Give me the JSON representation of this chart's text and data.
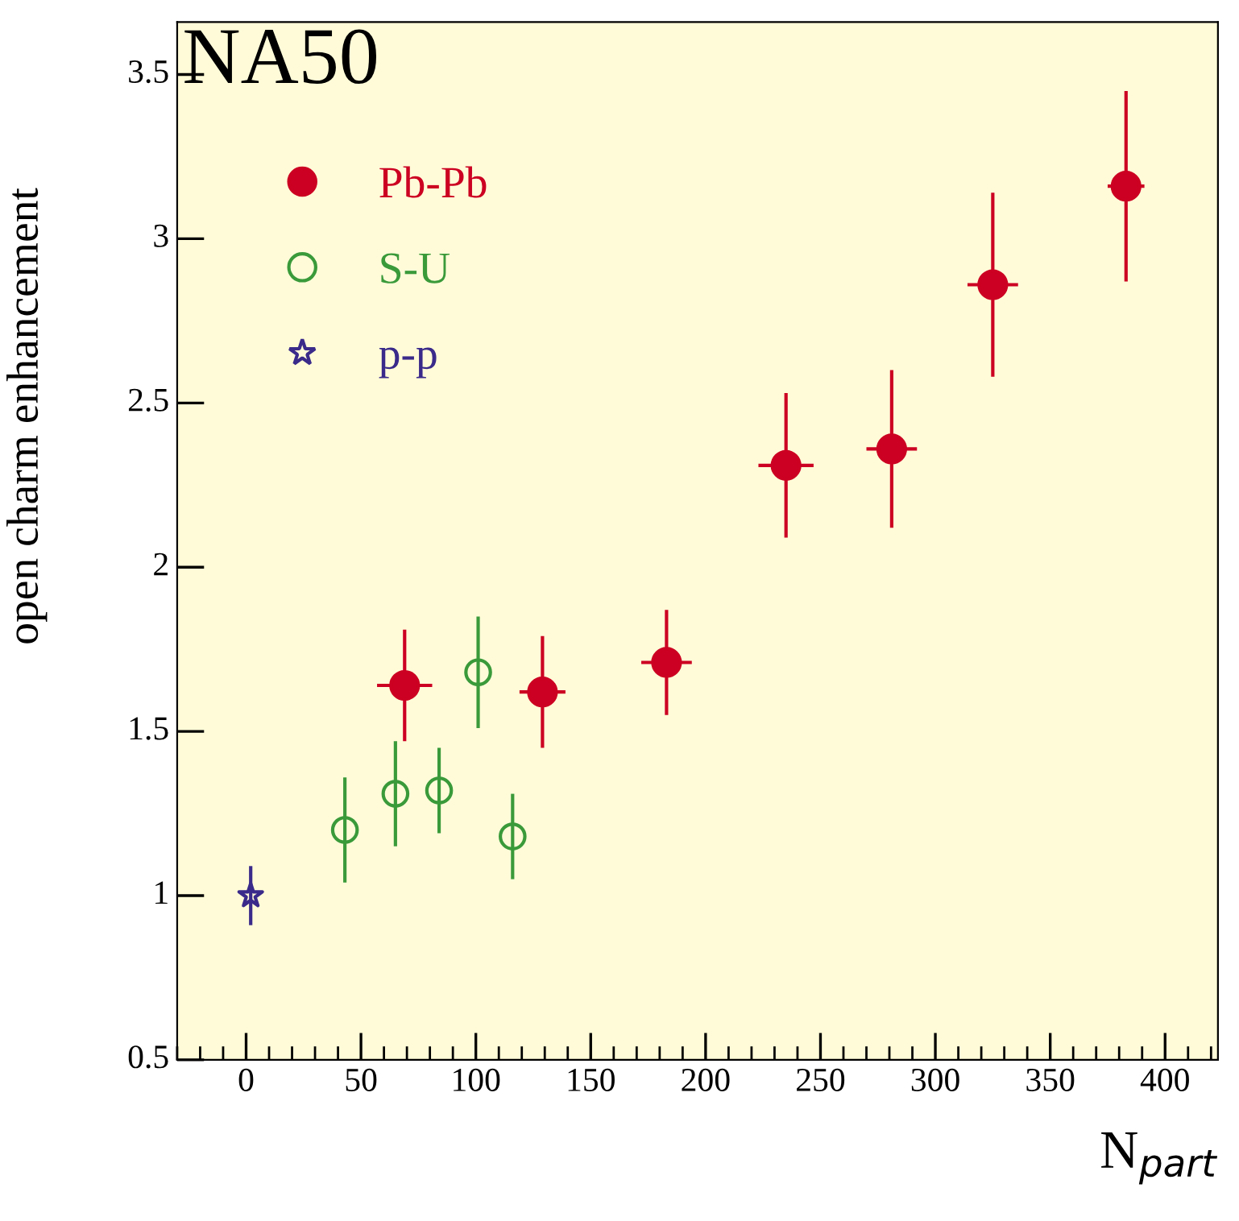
{
  "chart_data": {
    "type": "scatter",
    "xlabel": "N$_{part}$",
    "ylabel": "open charm enhancement",
    "annotations": [
      "NA50"
    ],
    "xlim": [
      -30,
      423
    ],
    "xticks": [
      0,
      50,
      100,
      150,
      200,
      250,
      300,
      350,
      400
    ],
    "ylim": [
      0.5,
      3.66
    ],
    "yticks": [
      0.5,
      1,
      1.5,
      2,
      2.5,
      3,
      3.5
    ],
    "grid": false,
    "legend": "top left",
    "series": [
      {
        "name": "Pb-Pb",
        "color": "#cc0022",
        "marker": "circle",
        "x": [
          69,
          129,
          183,
          235,
          281,
          325,
          383
        ],
        "values": [
          1.64,
          1.62,
          1.71,
          2.31,
          2.36,
          2.86,
          3.16
        ],
        "errors": [
          0.17,
          0.17,
          0.16,
          0.22,
          0.24,
          0.28,
          0.29
        ],
        "xerrors": [
          12,
          10,
          11,
          12,
          11,
          11,
          8
        ]
      },
      {
        "name": "S-U",
        "color": "#3a9a3a",
        "marker": "circle",
        "x": [
          43,
          65,
          84,
          101,
          116
        ],
        "values": [
          1.2,
          1.31,
          1.32,
          1.68,
          1.18
        ],
        "errors": [
          0.16,
          0.16,
          0.13,
          0.17,
          0.13
        ]
      },
      {
        "name": "p-p",
        "color": "#3a2a8a",
        "marker": "star",
        "x": [
          2
        ],
        "values": [
          1.0
        ],
        "errors": [
          0.09
        ]
      }
    ]
  }
}
